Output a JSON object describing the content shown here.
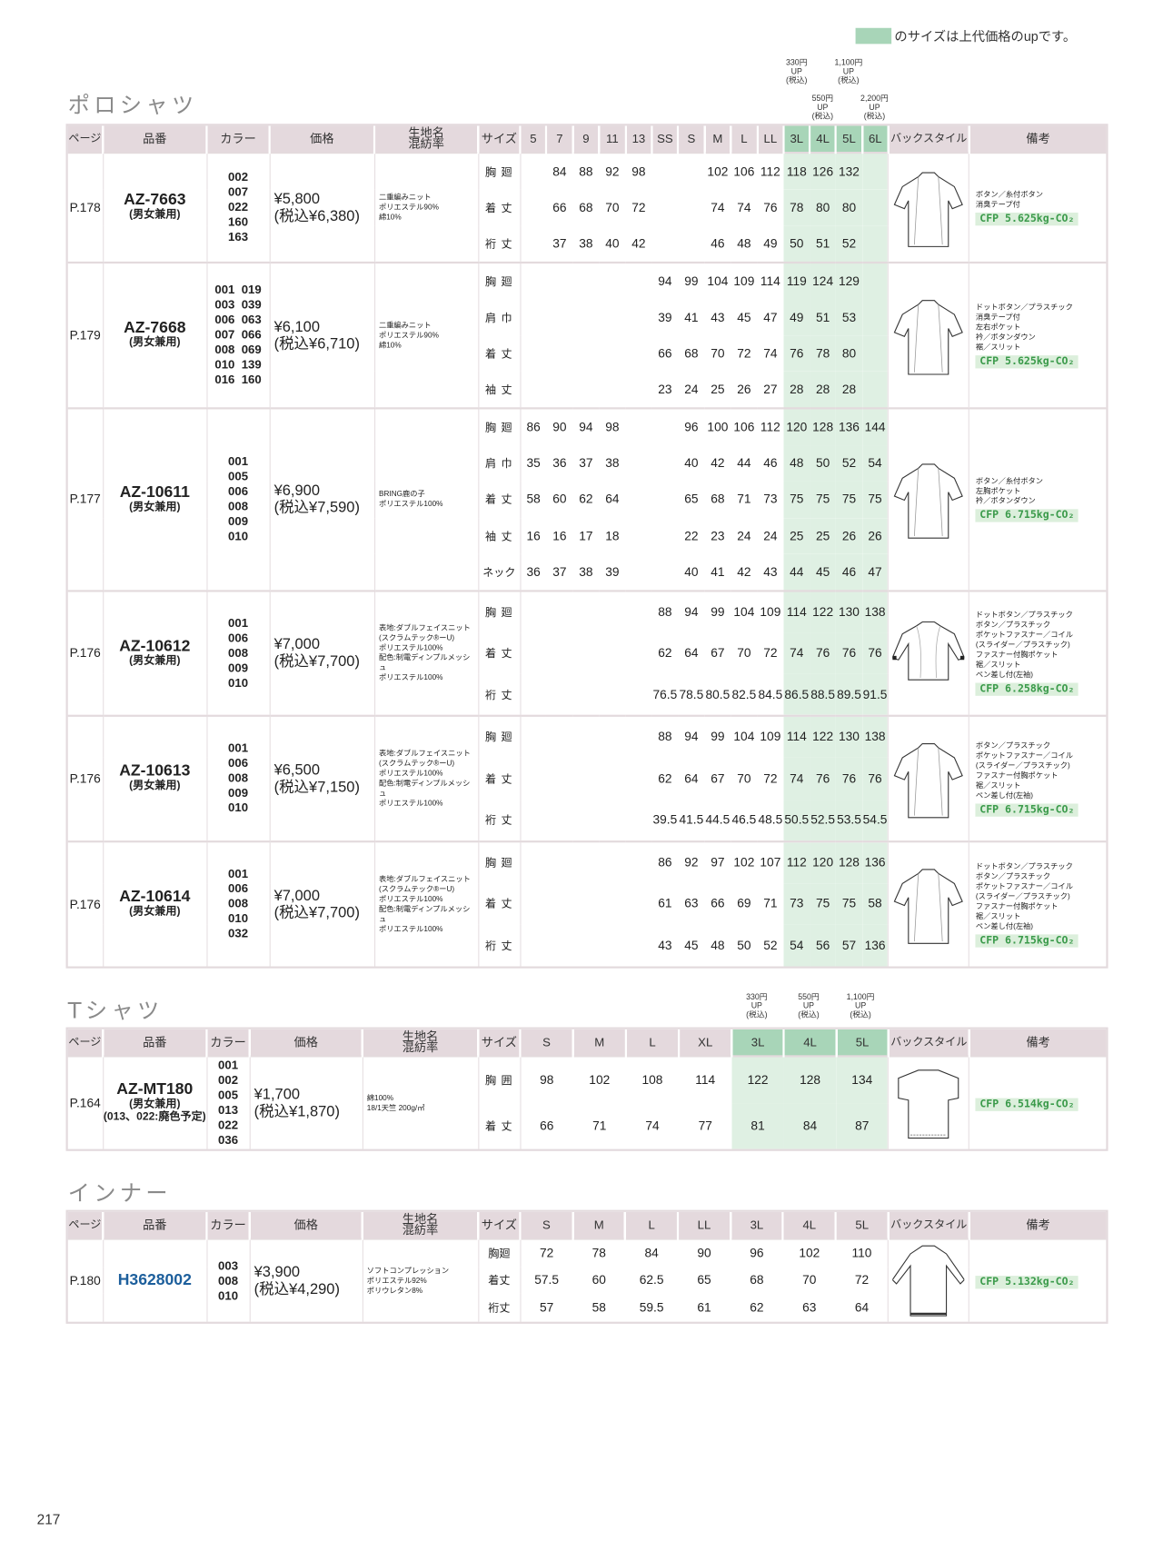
{
  "legend": {
    "text": "のサイズは上代価格のupです。",
    "swatch_color": "#a8d5b8"
  },
  "page_number": "217",
  "headers": {
    "page": "ページ",
    "code": "品番",
    "color": "カラー",
    "price": "価格",
    "fabric": "生地名\n混紡率",
    "size": "サイズ",
    "back": "バックスタイル",
    "remarks": "備考"
  },
  "polo": {
    "title": "ポロシャツ",
    "sizes": [
      "5",
      "7",
      "9",
      "11",
      "13",
      "SS",
      "S",
      "M",
      "L",
      "LL",
      "3L",
      "4L",
      "5L",
      "6L"
    ],
    "up_notes": [
      [
        "330円",
        "UP",
        "(税込)"
      ],
      [
        "550円",
        "UP",
        "(税込)"
      ],
      [
        "1,100円",
        "UP",
        "(税込)"
      ],
      [
        "2,200円",
        "UP",
        "(税込)"
      ]
    ],
    "products": [
      {
        "page": "P.178",
        "code": "AZ-7663",
        "sub": [
          "(男女兼用)"
        ],
        "colors": [
          "002",
          "007",
          "022",
          "160",
          "163"
        ],
        "price": "¥5,800",
        "price_tax": "(税込¥6,380)",
        "fabric": [
          "二重編みニット",
          "ポリエステル90%",
          "綿10%"
        ],
        "measures": [
          {
            "label": "胸廻",
            "values": [
              "",
              "84",
              "88",
              "92",
              "98",
              "",
              "",
              "102",
              "106",
              "112",
              "118",
              "126",
              "132",
              ""
            ]
          },
          {
            "label": "着丈",
            "values": [
              "",
              "66",
              "68",
              "70",
              "72",
              "",
              "",
              "74",
              "74",
              "76",
              "78",
              "80",
              "80",
              ""
            ]
          },
          {
            "label": "裄丈",
            "values": [
              "",
              "37",
              "38",
              "40",
              "42",
              "",
              "",
              "46",
              "48",
              "49",
              "50",
              "51",
              "52",
              ""
            ]
          }
        ],
        "remarks": [
          "ボタン／糸付ボタン",
          "消臭テープ付"
        ],
        "cfp": "CFP 5.625kg-CO₂",
        "back_icon": "shirt-back-short-sleeve"
      },
      {
        "page": "P.179",
        "code": "AZ-7668",
        "sub": [
          "(男女兼用)"
        ],
        "colors": [
          "001  019",
          "003  039",
          "006  063",
          "007  066",
          "008  069",
          "010  139",
          "016  160"
        ],
        "price": "¥6,100",
        "price_tax": "(税込¥6,710)",
        "fabric": [
          "二重編みニット",
          "ポリエステル90%",
          "綿10%"
        ],
        "measures": [
          {
            "label": "胸廻",
            "values": [
              "",
              "",
              "",
              "",
              "",
              "94",
              "99",
              "104",
              "109",
              "114",
              "119",
              "124",
              "129",
              ""
            ]
          },
          {
            "label": "肩巾",
            "values": [
              "",
              "",
              "",
              "",
              "",
              "39",
              "41",
              "43",
              "45",
              "47",
              "49",
              "51",
              "53",
              ""
            ]
          },
          {
            "label": "着丈",
            "values": [
              "",
              "",
              "",
              "",
              "",
              "66",
              "68",
              "70",
              "72",
              "74",
              "76",
              "78",
              "80",
              ""
            ]
          },
          {
            "label": "袖丈",
            "values": [
              "",
              "",
              "",
              "",
              "",
              "23",
              "24",
              "25",
              "26",
              "27",
              "28",
              "28",
              "28",
              ""
            ]
          }
        ],
        "remarks": [
          "ドットボタン／プラスチック",
          "消臭テープ付",
          "左右ポケット",
          "衿／ボタンダウン",
          "裾／スリット"
        ],
        "cfp": "CFP 5.625kg-CO₂",
        "back_icon": "shirt-back-short-sleeve"
      },
      {
        "page": "P.177",
        "code": "AZ-10611",
        "sub": [
          "(男女兼用)"
        ],
        "colors": [
          "001",
          "005",
          "006",
          "008",
          "009",
          "010"
        ],
        "price": "¥6,900",
        "price_tax": "(税込¥7,590)",
        "fabric": [
          "BRING鹿の子",
          "ポリエステル100%"
        ],
        "measures": [
          {
            "label": "胸廻",
            "values": [
              "86",
              "90",
              "94",
              "98",
              "",
              "",
              "96",
              "100",
              "106",
              "112",
              "120",
              "128",
              "136",
              "144"
            ]
          },
          {
            "label": "肩巾",
            "values": [
              "35",
              "36",
              "37",
              "38",
              "",
              "",
              "40",
              "42",
              "44",
              "46",
              "48",
              "50",
              "52",
              "54"
            ]
          },
          {
            "label": "着丈",
            "values": [
              "58",
              "60",
              "62",
              "64",
              "",
              "",
              "65",
              "68",
              "71",
              "73",
              "75",
              "75",
              "75",
              "75"
            ]
          },
          {
            "label": "袖丈",
            "values": [
              "16",
              "16",
              "17",
              "18",
              "",
              "",
              "22",
              "23",
              "24",
              "24",
              "25",
              "25",
              "26",
              "26"
            ]
          },
          {
            "label": "ネック",
            "values": [
              "36",
              "37",
              "38",
              "39",
              "",
              "",
              "40",
              "41",
              "42",
              "43",
              "44",
              "45",
              "46",
              "47"
            ]
          }
        ],
        "remarks": [
          "ボタン／糸付ボタン",
          "左胸ポケット",
          "衿／ボタンダウン"
        ],
        "cfp": "CFP 6.715kg-CO₂",
        "back_icon": "shirt-back-short-sleeve"
      },
      {
        "page": "P.176",
        "code": "AZ-10612",
        "sub": [
          "(男女兼用)"
        ],
        "colors": [
          "001",
          "006",
          "008",
          "009",
          "010"
        ],
        "price": "¥7,000",
        "price_tax": "(税込¥7,700)",
        "fabric": [
          "表地:ダブルフェイスニット",
          "(スクラムテック®ーU)",
          "ポリエステル100%",
          "配色:制電ディンプルメッシュ",
          "ポリエステル100%"
        ],
        "measures": [
          {
            "label": "胸廻",
            "values": [
              "",
              "",
              "",
              "",
              "",
              "88",
              "94",
              "99",
              "104",
              "109",
              "114",
              "122",
              "130",
              "138"
            ]
          },
          {
            "label": "着丈",
            "values": [
              "",
              "",
              "",
              "",
              "",
              "62",
              "64",
              "67",
              "70",
              "72",
              "74",
              "76",
              "76",
              "76"
            ]
          },
          {
            "label": "裄丈",
            "values": [
              "",
              "",
              "",
              "",
              "",
              "76.5",
              "78.5",
              "80.5",
              "82.5",
              "84.5",
              "86.5",
              "88.5",
              "89.5",
              "91.5"
            ]
          }
        ],
        "remarks": [
          "ドットボタン／プラスチック",
          "ボタン／プラスチック",
          "ポケットファスナー／コイル",
          "(スライダー／プラスチック)",
          "ファスナー付胸ポケット",
          "裾／スリット",
          "ペン差し付(左袖)"
        ],
        "cfp": "CFP 6.258kg-CO₂",
        "back_icon": "shirt-back-long-sleeve"
      },
      {
        "page": "P.176",
        "code": "AZ-10613",
        "sub": [
          "(男女兼用)"
        ],
        "colors": [
          "001",
          "006",
          "008",
          "009",
          "010"
        ],
        "price": "¥6,500",
        "price_tax": "(税込¥7,150)",
        "fabric": [
          "表地:ダブルフェイスニット",
          "(スクラムテック®ーU)",
          "ポリエステル100%",
          "配色:制電ディンプルメッシュ",
          "ポリエステル100%"
        ],
        "measures": [
          {
            "label": "胸廻",
            "values": [
              "",
              "",
              "",
              "",
              "",
              "88",
              "94",
              "99",
              "104",
              "109",
              "114",
              "122",
              "130",
              "138"
            ]
          },
          {
            "label": "着丈",
            "values": [
              "",
              "",
              "",
              "",
              "",
              "62",
              "64",
              "67",
              "70",
              "72",
              "74",
              "76",
              "76",
              "76"
            ]
          },
          {
            "label": "裄丈",
            "values": [
              "",
              "",
              "",
              "",
              "",
              "39.5",
              "41.5",
              "44.5",
              "46.5",
              "48.5",
              "50.5",
              "52.5",
              "53.5",
              "54.5"
            ]
          }
        ],
        "remarks": [
          "ボタン／プラスチック",
          "ポケットファスナー／コイル",
          "(スライダー／プラスチック)",
          "ファスナー付胸ポケット",
          "裾／スリット",
          "ペン差し付(左袖)"
        ],
        "cfp": "CFP 6.715kg-CO₂",
        "back_icon": "shirt-back-short-sleeve"
      },
      {
        "page": "P.176",
        "code": "AZ-10614",
        "sub": [
          "(男女兼用)"
        ],
        "colors": [
          "001",
          "006",
          "008",
          "010",
          "032"
        ],
        "price": "¥7,000",
        "price_tax": "(税込¥7,700)",
        "fabric": [
          "表地:ダブルフェイスニット",
          "(スクラムテック®ーU)",
          "ポリエステル100%",
          "配色:制電ディンプルメッシュ",
          "ポリエステル100%"
        ],
        "measures": [
          {
            "label": "胸廻",
            "values": [
              "",
              "",
              "",
              "",
              "",
              "86",
              "92",
              "97",
              "102",
              "107",
              "112",
              "120",
              "128",
              "136"
            ]
          },
          {
            "label": "着丈",
            "values": [
              "",
              "",
              "",
              "",
              "",
              "61",
              "63",
              "66",
              "69",
              "71",
              "73",
              "75",
              "75",
              "58"
            ]
          },
          {
            "label": "裄丈",
            "values": [
              "",
              "",
              "",
              "",
              "",
              "43",
              "45",
              "48",
              "50",
              "52",
              "54",
              "56",
              "57",
              "136"
            ]
          }
        ],
        "remarks": [
          "ドットボタン／プラスチック",
          "ボタン／プラスチック",
          "ポケットファスナー／コイル",
          "(スライダー／プラスチック)",
          "ファスナー付胸ポケット",
          "裾／スリット",
          "ペン差し付(左袖)"
        ],
        "cfp": "CFP 6.715kg-CO₂",
        "back_icon": "shirt-back-short-sleeve"
      }
    ]
  },
  "tshirt": {
    "title": "Tシャツ",
    "sizes": [
      "S",
      "M",
      "L",
      "XL",
      "3L",
      "4L",
      "5L"
    ],
    "up_notes": [
      [
        "330円",
        "UP",
        "(税込)"
      ],
      [
        "550円",
        "UP",
        "(税込)"
      ],
      [
        "1,100円",
        "UP",
        "(税込)"
      ]
    ],
    "products": [
      {
        "page": "P.164",
        "code": "AZ-MT180",
        "sub": [
          "(男女兼用)",
          "(013、022:廃色予定)"
        ],
        "colors": [
          "001",
          "002",
          "005",
          "013",
          "022",
          "036"
        ],
        "price": "¥1,700",
        "price_tax": "(税込¥1,870)",
        "fabric": [
          "綿100%",
          "18/1天竺 200g/㎡"
        ],
        "measures": [
          {
            "label": "胸囲",
            "values": [
              "98",
              "102",
              "108",
              "114",
              "122",
              "128",
              "134"
            ]
          },
          {
            "label": "着丈",
            "values": [
              "66",
              "71",
              "74",
              "77",
              "81",
              "84",
              "87"
            ]
          }
        ],
        "remarks": [],
        "cfp": "CFP 6.514kg-CO₂",
        "back_icon": "tshirt-back"
      }
    ]
  },
  "inner": {
    "title": "インナー",
    "sizes": [
      "S",
      "M",
      "L",
      "LL",
      "3L",
      "4L",
      "5L"
    ],
    "products": [
      {
        "page": "P.180",
        "code": "H3628002",
        "sub": [],
        "colors": [
          "003",
          "008",
          "010"
        ],
        "price": "¥3,900",
        "price_tax": "(税込¥4,290)",
        "fabric": [
          "ソフトコンプレッション",
          "ポリエステル92%",
          "ポリウレタン8%"
        ],
        "measures": [
          {
            "label": "胸廻",
            "values": [
              "72",
              "78",
              "84",
              "90",
              "96",
              "102",
              "110"
            ]
          },
          {
            "label": "着丈",
            "values": [
              "57.5",
              "60",
              "62.5",
              "65",
              "68",
              "70",
              "72"
            ]
          },
          {
            "label": "裄丈",
            "values": [
              "57",
              "58",
              "59.5",
              "61",
              "62",
              "63",
              "64"
            ]
          }
        ],
        "remarks": [],
        "cfp": "CFP 5.132kg-CO₂",
        "back_icon": "inner-back-long-sleeve"
      }
    ]
  }
}
